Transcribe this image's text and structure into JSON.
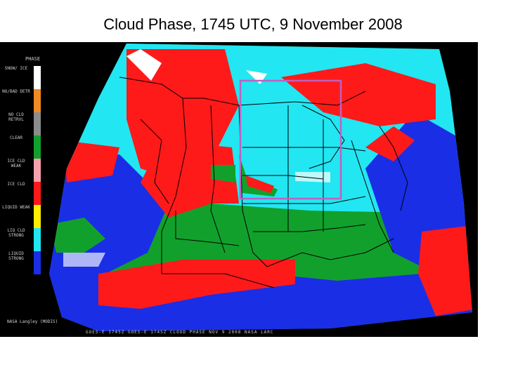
{
  "title": "Cloud Phase, 1745 UTC, 9 November 2008",
  "legend": {
    "header": "PHASE",
    "items": [
      {
        "label": "SNOW/ ICE",
        "color": "#ffffff"
      },
      {
        "label": "NO/BAD DETR",
        "color": "#f08a24"
      },
      {
        "label": "NO CLD RETRVL",
        "color": "#8c8c8c"
      },
      {
        "label": "CLEAR",
        "color": "#12a02c"
      },
      {
        "label": "ICE CLD WEAK",
        "color": "#f7a0b0"
      },
      {
        "label": "ICE CLD",
        "color": "#ff1a1a"
      },
      {
        "label": "LIQUID WEAK",
        "color": "#ffee00"
      },
      {
        "label": "LIQ CLD STRONG",
        "color": "#22e6f2"
      },
      {
        "label": "LIQUID STRONG",
        "color": "#1a2ee6"
      }
    ]
  },
  "credit": "NASA Langley (MODIS)",
  "status_line": "GOES-E 1745Z  GOES-E 1745Z  CLOUD PHASE  NOV 9 2008  NASA LARC",
  "colors": {
    "clear": "#12a02c",
    "ice": "#ff1a1a",
    "liquid_strong": "#1a2ee6",
    "liquid_cloud": "#22e6f2",
    "snow_ice": "#ffffff",
    "box_outline": "#c060c0",
    "borders": "#000000"
  }
}
